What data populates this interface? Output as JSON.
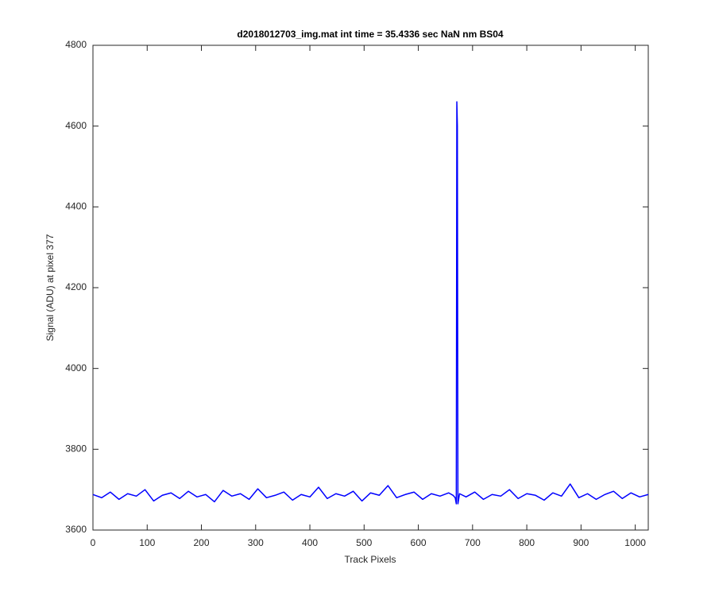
{
  "chart_data": {
    "type": "line",
    "title": "d2018012703_img.mat int time = 35.4336 sec  NaN nm BS04",
    "x_label": "Track Pixels",
    "y_label": "Signal (ADU) at pixel 377",
    "x": [
      0,
      16,
      32,
      48,
      64,
      80,
      96,
      112,
      128,
      144,
      160,
      176,
      192,
      208,
      224,
      240,
      256,
      272,
      288,
      304,
      320,
      336,
      352,
      368,
      384,
      400,
      416,
      432,
      448,
      464,
      480,
      496,
      512,
      528,
      544,
      560,
      576,
      592,
      608,
      624,
      640,
      656,
      664,
      668,
      670,
      671,
      672,
      673,
      676,
      688,
      704,
      720,
      736,
      752,
      768,
      784,
      800,
      816,
      832,
      848,
      864,
      880,
      896,
      912,
      928,
      944,
      960,
      976,
      992,
      1008,
      1024
    ],
    "series": [
      {
        "name": "signal",
        "color": "#0000ff",
        "values": [
          3688,
          3680,
          3694,
          3676,
          3690,
          3684,
          3700,
          3672,
          3686,
          3692,
          3678,
          3696,
          3682,
          3688,
          3670,
          3698,
          3684,
          3690,
          3676,
          3702,
          3680,
          3686,
          3694,
          3674,
          3688,
          3682,
          3706,
          3678,
          3690,
          3684,
          3696,
          3672,
          3692,
          3686,
          3710,
          3680,
          3688,
          3694,
          3676,
          3690,
          3684,
          3692,
          3686,
          3680,
          3665,
          4660,
          4600,
          3665,
          3690,
          3682,
          3694,
          3676,
          3688,
          3684,
          3700,
          3678,
          3690,
          3686,
          3674,
          3692,
          3684,
          3714,
          3680,
          3690,
          3676,
          3688,
          3696,
          3678,
          3692,
          3682,
          3688
        ]
      }
    ],
    "xlim": [
      0,
      1024
    ],
    "ylim": [
      3600,
      4800
    ],
    "xticks": [
      0,
      100,
      200,
      300,
      400,
      500,
      600,
      700,
      800,
      900,
      1000
    ],
    "yticks": [
      3600,
      3800,
      4000,
      4200,
      4400,
      4600,
      4800
    ]
  }
}
